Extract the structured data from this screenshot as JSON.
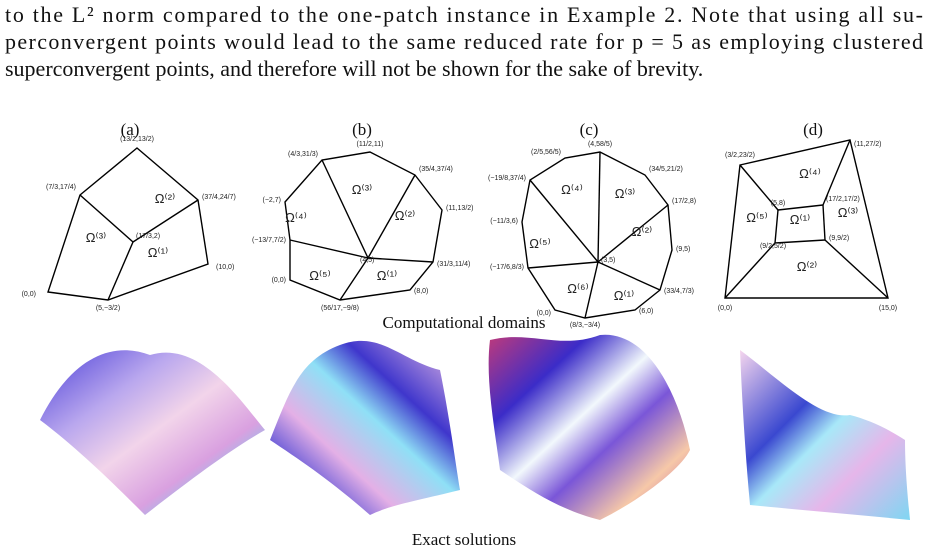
{
  "paragraph": {
    "lines": [
      "to the L² norm compared to the one-patch instance in Example 2. Note that using all su-",
      "perconvergent points would lead to the same reduced rate for p = 5 as employing clustered",
      "superconvergent points, and therefore will not be shown for the sake of brevity."
    ]
  },
  "figure": {
    "panels": [
      {
        "label": "(a)",
        "vertices": [
          "(0,0)",
          "(5,−3/2)",
          "(10,0)",
          "(37/4,24/7)",
          "(13/2,13/2)",
          "(7/3,17/4)",
          "(17/3,2)"
        ],
        "regions": [
          "Ω⁽²⁾",
          "Ω⁽³⁾",
          "Ω⁽¹⁾"
        ]
      },
      {
        "label": "(b)",
        "vertices": [
          "(11/2,11)",
          "(35/4,37/4)",
          "(11,13/2)",
          "(31/3,11/4)",
          "(8,0)",
          "(56/17,−9/8)",
          "(0,0)",
          "(−13/7,7/2)",
          "(−2,7)",
          "(4/3,31/3)",
          "(4,5)"
        ],
        "regions": [
          "Ω⁽³⁾",
          "Ω⁽⁴⁾",
          "Ω⁽²⁾",
          "Ω⁽⁵⁾",
          "Ω⁽¹⁾"
        ]
      },
      {
        "label": "(c)",
        "vertices": [
          "(4,58/5)",
          "(34/5,21/2)",
          "(17/2,8)",
          "(9,5)",
          "(33/4,7/3)",
          "(6,0)",
          "(8/3,−3/4)",
          "(0,0)",
          "(−17/6,8/3)",
          "(−11/3,6)",
          "(−19/8,37/4)",
          "(2/5,56/5)",
          "(3,5)"
        ],
        "regions": [
          "Ω⁽⁴⁾",
          "Ω⁽³⁾",
          "Ω⁽⁵⁾",
          "Ω⁽²⁾",
          "Ω⁽⁶⁾",
          "Ω⁽¹⁾"
        ]
      },
      {
        "label": "(d)",
        "vertices": [
          "(3/2,23/2)",
          "(11,27/2)",
          "(15,0)",
          "(0,0)",
          "(5,8)",
          "(17/2,17/2)",
          "(9,9/2)",
          "(9/2,5/2)"
        ],
        "regions": [
          "Ω⁽⁴⁾",
          "Ω⁽⁵⁾",
          "Ω⁽¹⁾",
          "Ω⁽³⁾",
          "Ω⁽²⁾"
        ]
      }
    ],
    "domains_caption": "Computational domains",
    "solutions_caption": "Exact solutions"
  }
}
